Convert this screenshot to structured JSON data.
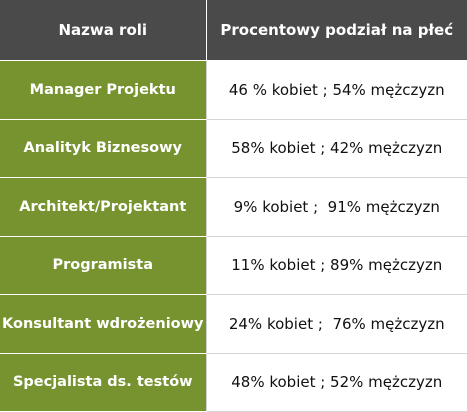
{
  "header": {
    "col_role": "Nazwa roli",
    "col_pct": "Procentowy podział na płeć"
  },
  "rows": [
    {
      "role": "Manager Projektu",
      "pct": "46 % kobiet ; 54% mężczyzn"
    },
    {
      "role": "Analityk Biznesowy",
      "pct": "58% kobiet ; 42% mężczyzn"
    },
    {
      "role": "Architekt/Projektant",
      "pct": "9% kobiet ;  91% mężczyzn"
    },
    {
      "role": "Programista",
      "pct": "11% kobiet ; 89% mężczyzn"
    },
    {
      "role": "Konsultant wdrożeniowy",
      "pct": "24% kobiet ;  76% mężczyzn"
    },
    {
      "role": "Specjalista ds. testów",
      "pct": "48% kobiet ; 52% mężczyzn"
    }
  ],
  "colors": {
    "header_bg": "#4a4a4a",
    "role_bg": "#77932f",
    "cell_bg": "#ffffff"
  }
}
